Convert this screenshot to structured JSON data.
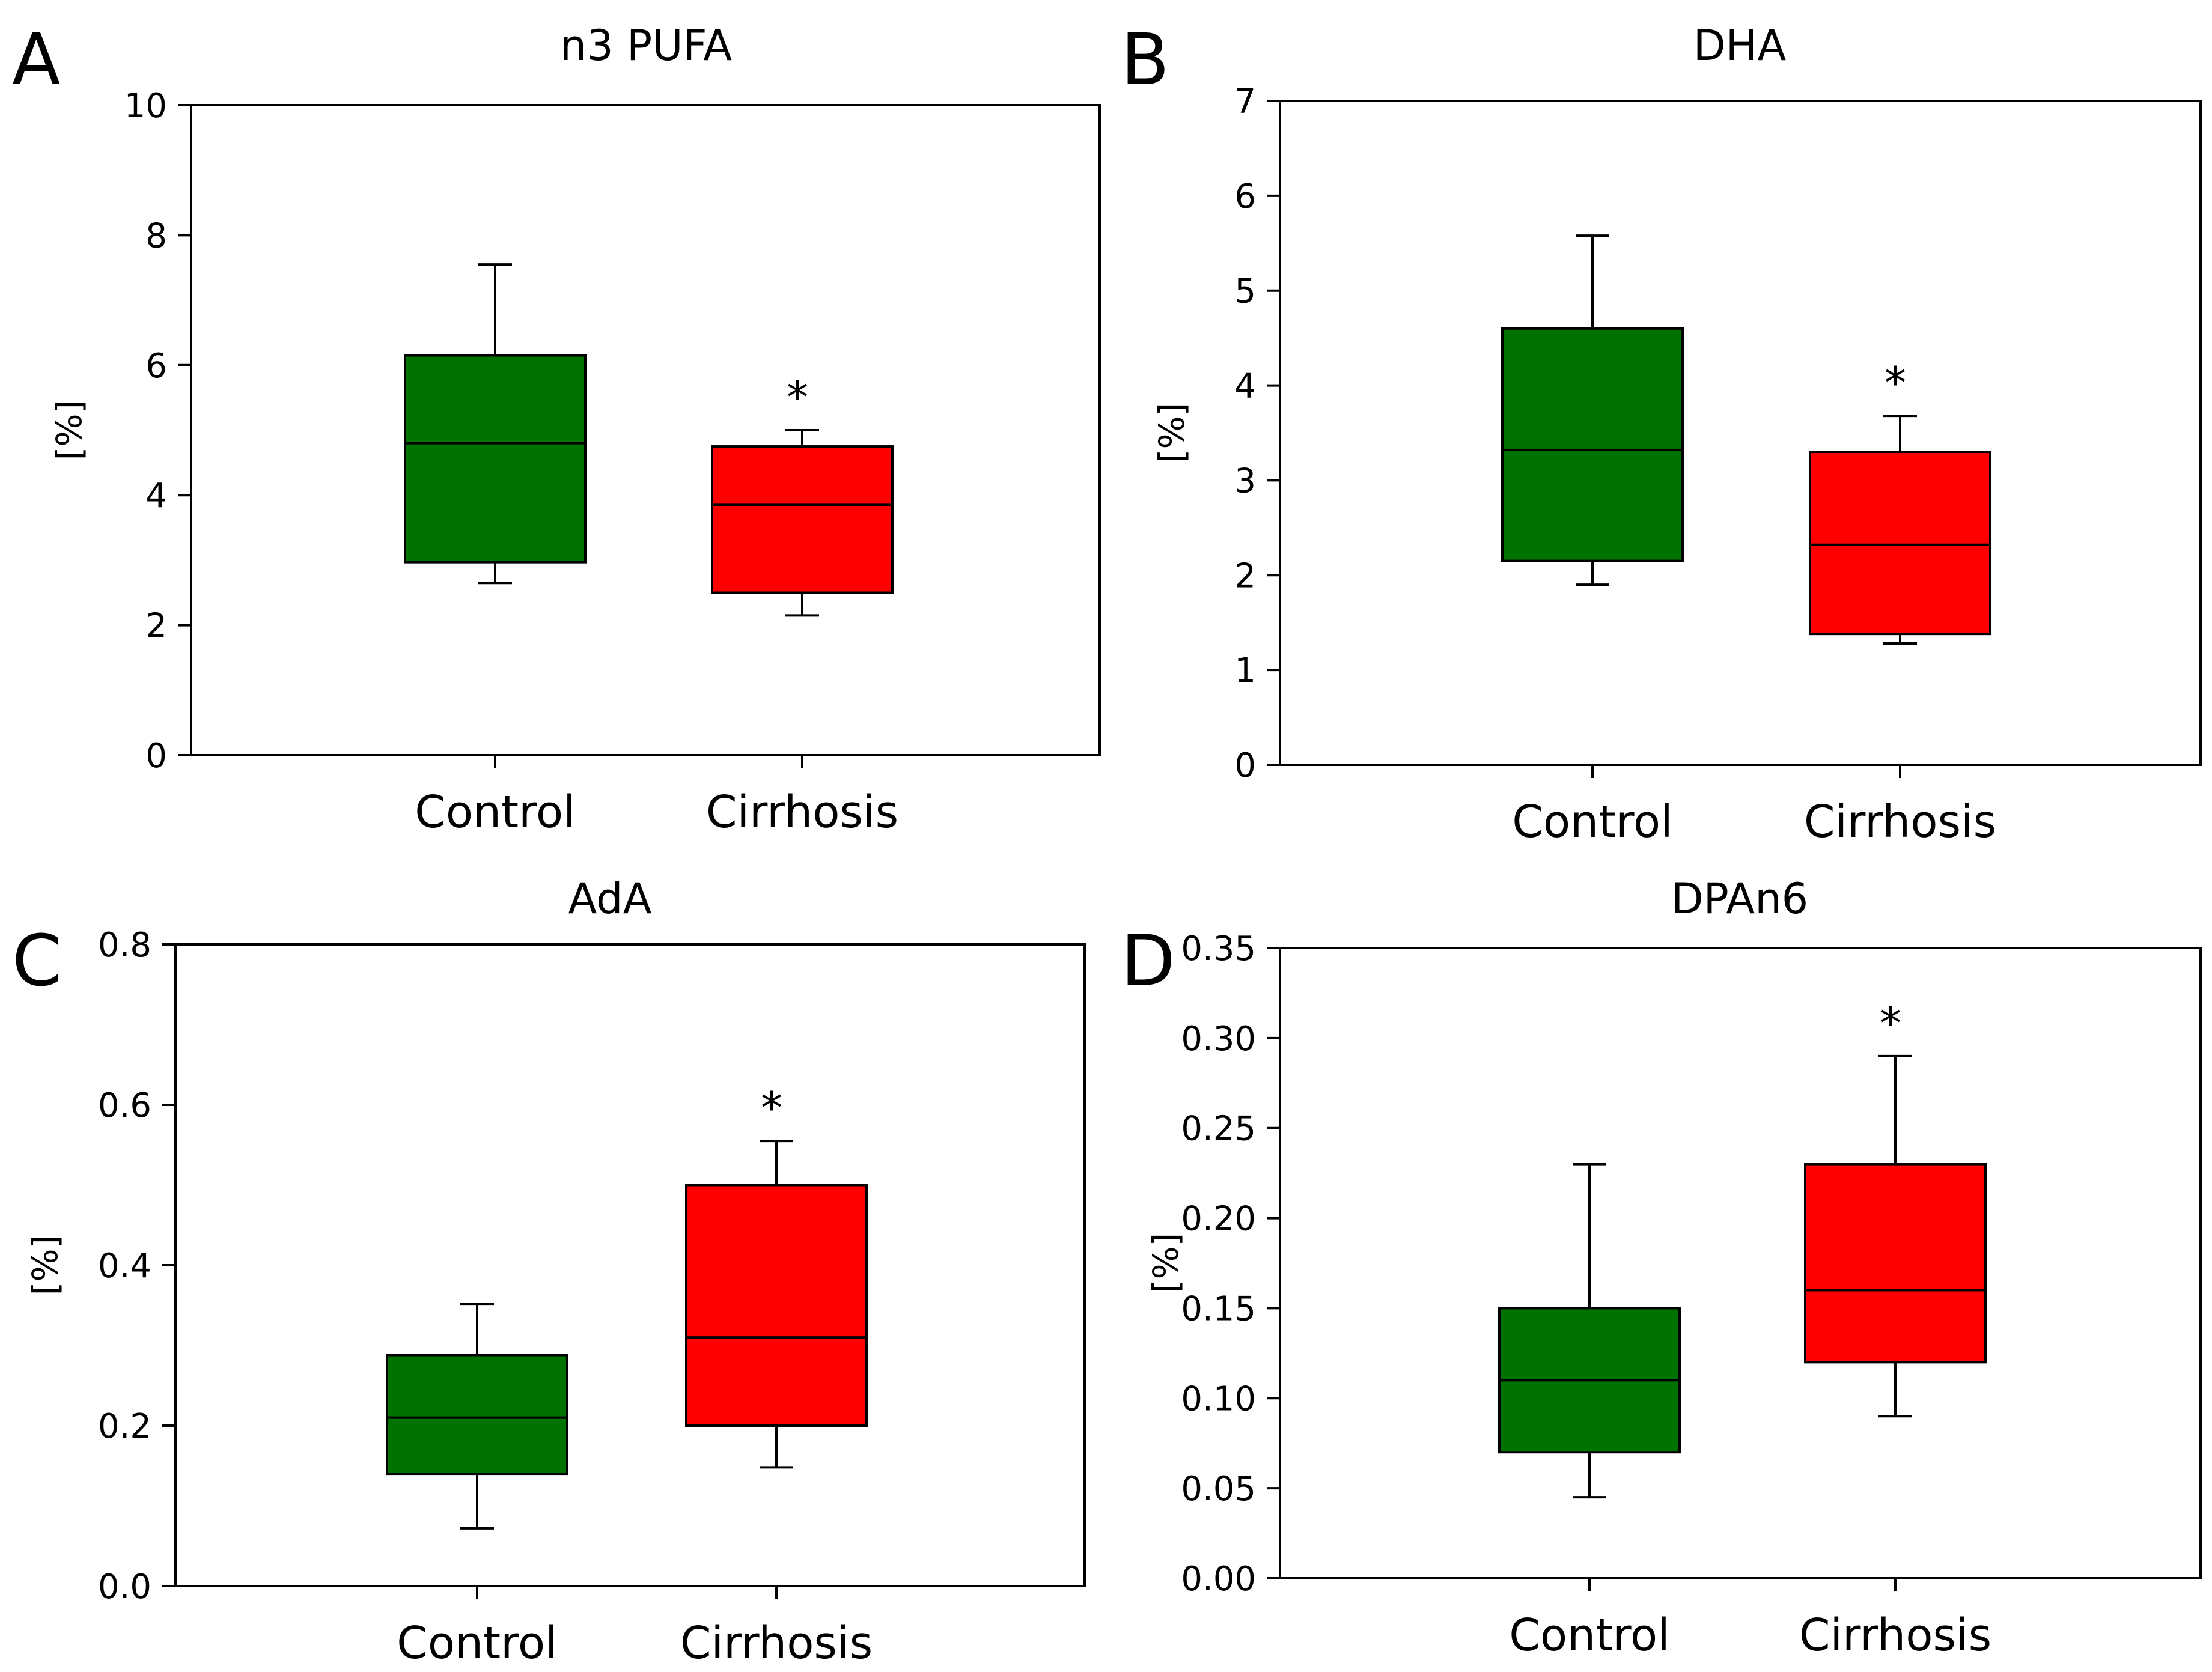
{
  "colors": {
    "control": "#007200",
    "cirrhosis": "#ff0000",
    "line": "#000000"
  },
  "chart_data": [
    {
      "type": "box",
      "panel": "A",
      "title": "n3 PUFA",
      "ylabel": "[%]",
      "xlabel": "",
      "ylim": [
        0,
        10
      ],
      "yticks": [
        "0",
        "2",
        "4",
        "6",
        "8",
        "10"
      ],
      "ytick_values": [
        0,
        2,
        4,
        6,
        8,
        10
      ],
      "categories": [
        "Control",
        "Cirrhosis"
      ],
      "series": [
        {
          "name": "Control",
          "whisker_low": 2.65,
          "q1": 2.97,
          "median": 4.8,
          "q3": 6.15,
          "whisker_high": 7.55,
          "annotation": ""
        },
        {
          "name": "Cirrhosis",
          "whisker_low": 2.15,
          "q1": 2.5,
          "median": 3.85,
          "q3": 4.75,
          "whisker_high": 5.0,
          "annotation": "*"
        }
      ]
    },
    {
      "type": "box",
      "panel": "B",
      "title": "DHA",
      "ylabel": "[%]",
      "xlabel": "",
      "ylim": [
        0,
        7
      ],
      "yticks": [
        "0",
        "1",
        "2",
        "3",
        "4",
        "5",
        "6",
        "7"
      ],
      "ytick_values": [
        0,
        1,
        2,
        3,
        4,
        5,
        6,
        7
      ],
      "categories": [
        "Control",
        "Cirrhosis"
      ],
      "series": [
        {
          "name": "Control",
          "whisker_low": 1.9,
          "q1": 2.15,
          "median": 3.32,
          "q3": 4.6,
          "whisker_high": 5.58,
          "annotation": ""
        },
        {
          "name": "Cirrhosis",
          "whisker_low": 1.28,
          "q1": 1.38,
          "median": 2.32,
          "q3": 3.3,
          "whisker_high": 3.68,
          "annotation": "*"
        }
      ]
    },
    {
      "type": "box",
      "panel": "C",
      "title": "AdA",
      "ylabel": "[%]",
      "xlabel": "",
      "ylim": [
        0.0,
        0.8
      ],
      "yticks": [
        "0.0",
        "0.2",
        "0.4",
        "0.6",
        "0.8"
      ],
      "ytick_values": [
        0.0,
        0.2,
        0.4,
        0.6,
        0.8
      ],
      "categories": [
        "Control",
        "Cirrhosis"
      ],
      "series": [
        {
          "name": "Control",
          "whisker_low": 0.072,
          "q1": 0.14,
          "median": 0.21,
          "q3": 0.288,
          "whisker_high": 0.352,
          "annotation": ""
        },
        {
          "name": "Cirrhosis",
          "whisker_low": 0.148,
          "q1": 0.2,
          "median": 0.31,
          "q3": 0.5,
          "whisker_high": 0.555,
          "annotation": "*"
        }
      ]
    },
    {
      "type": "box",
      "panel": "D",
      "title": "DPAn6",
      "ylabel": "[%]",
      "xlabel": "",
      "ylim": [
        0.0,
        0.35
      ],
      "yticks": [
        "0.00",
        "0.05",
        "0.10",
        "0.15",
        "0.20",
        "0.25",
        "0.30",
        "0.35"
      ],
      "ytick_values": [
        0.0,
        0.05,
        0.1,
        0.15,
        0.2,
        0.25,
        0.3,
        0.35
      ],
      "categories": [
        "Control",
        "Cirrhosis"
      ],
      "series": [
        {
          "name": "Control",
          "whisker_low": 0.045,
          "q1": 0.07,
          "median": 0.11,
          "q3": 0.15,
          "whisker_high": 0.23,
          "annotation": ""
        },
        {
          "name": "Cirrhosis",
          "whisker_low": 0.09,
          "q1": 0.12,
          "median": 0.16,
          "q3": 0.23,
          "whisker_high": 0.29,
          "annotation": "*"
        }
      ]
    }
  ]
}
